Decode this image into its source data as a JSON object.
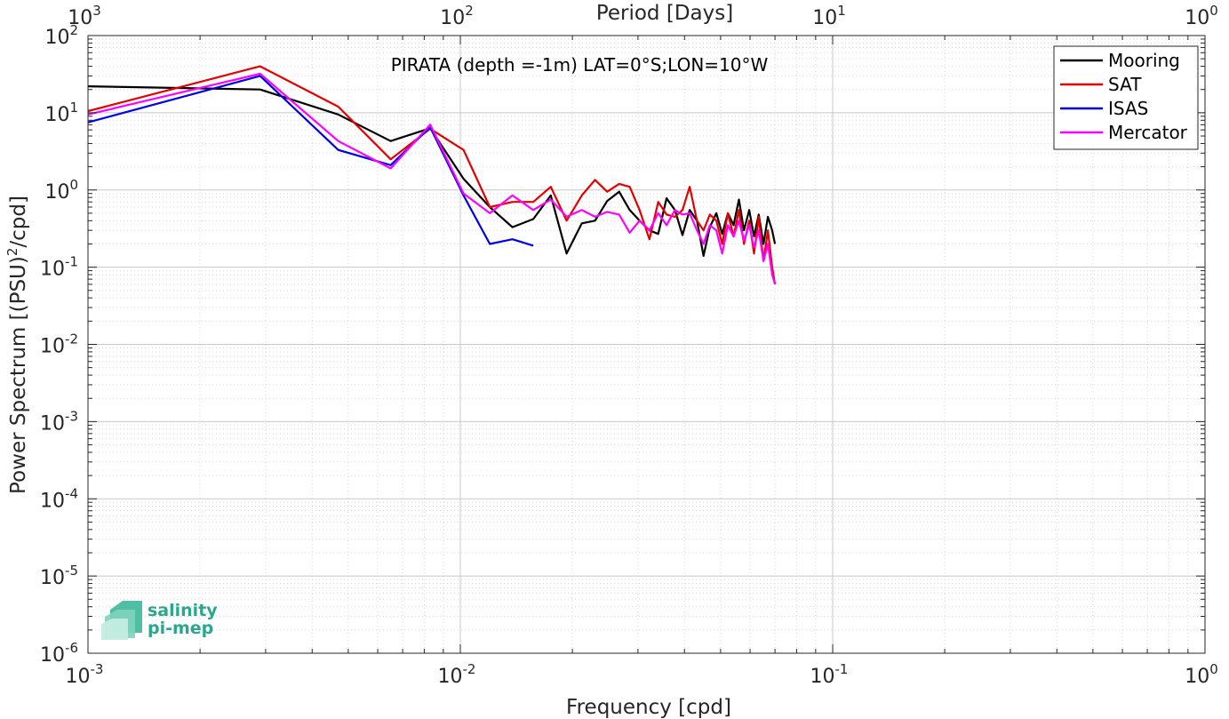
{
  "chart_data": {
    "type": "line",
    "title": "PIRATA (depth =-1m) LAT=0°S;LON=10°W",
    "xlabel": "Frequency [cpd]",
    "ylabel_main": "Power Spectrum [(PSU)",
    "ylabel_sup": "2",
    "ylabel_tail": "/cpd]",
    "top_xlabel": "Period [Days]",
    "xscale": "log",
    "yscale": "log",
    "xlim": [
      0.001,
      1
    ],
    "ylim": [
      1e-06,
      100
    ],
    "grid": true,
    "legend_position": "top-right",
    "x_ticks": [
      {
        "base": "10",
        "exp": "-3"
      },
      {
        "base": "10",
        "exp": "-2"
      },
      {
        "base": "10",
        "exp": "-1"
      },
      {
        "base": "10",
        "exp": "0"
      }
    ],
    "top_ticks": [
      {
        "base": "10",
        "exp": "3"
      },
      {
        "base": "10",
        "exp": "2"
      },
      {
        "base": "10",
        "exp": "1"
      },
      {
        "base": "10",
        "exp": "0"
      }
    ],
    "y_ticks": [
      {
        "base": "10",
        "exp": "2"
      },
      {
        "base": "10",
        "exp": "1"
      },
      {
        "base": "10",
        "exp": "0"
      },
      {
        "base": "10",
        "exp": "-1"
      },
      {
        "base": "10",
        "exp": "-2"
      },
      {
        "base": "10",
        "exp": "-3"
      },
      {
        "base": "10",
        "exp": "-4"
      },
      {
        "base": "10",
        "exp": "-5"
      },
      {
        "base": "10",
        "exp": "-6"
      }
    ],
    "series": [
      {
        "name": "Mooring",
        "color": "#000000",
        "x": [
          0.001,
          0.0029,
          0.0047,
          0.0065,
          0.0083,
          0.0102,
          0.012,
          0.0138,
          0.0157,
          0.0175,
          0.0193,
          0.0212,
          0.023,
          0.0248,
          0.0267,
          0.0285,
          0.0303,
          0.0322,
          0.034,
          0.0358,
          0.0377,
          0.0395,
          0.0413,
          0.0432,
          0.045,
          0.0468,
          0.0487,
          0.0505,
          0.0523,
          0.0542,
          0.056,
          0.0578,
          0.0597,
          0.0615,
          0.0633,
          0.0652,
          0.067,
          0.0688,
          0.07
        ],
        "y": [
          22,
          20,
          9.5,
          4.3,
          6.3,
          1.4,
          0.6,
          0.33,
          0.42,
          0.85,
          0.15,
          0.37,
          0.4,
          0.72,
          0.95,
          0.55,
          0.4,
          0.3,
          0.27,
          0.78,
          0.55,
          0.26,
          0.55,
          0.4,
          0.14,
          0.33,
          0.5,
          0.27,
          0.5,
          0.35,
          0.75,
          0.3,
          0.55,
          0.25,
          0.48,
          0.2,
          0.45,
          0.3,
          0.2
        ]
      },
      {
        "name": "SAT",
        "color": "#e50000",
        "x": [
          0.001,
          0.0029,
          0.0047,
          0.0065,
          0.0083,
          0.0102,
          0.012,
          0.0138,
          0.0157,
          0.0175,
          0.0193,
          0.0212,
          0.023,
          0.0248,
          0.0267,
          0.0285,
          0.0303,
          0.0322,
          0.034,
          0.0358,
          0.0377,
          0.0395,
          0.0413,
          0.0432,
          0.045,
          0.0468,
          0.0487,
          0.0505,
          0.0523,
          0.0542,
          0.056,
          0.0578,
          0.0597,
          0.0615,
          0.0633,
          0.0652,
          0.067,
          0.0688,
          0.07
        ],
        "y": [
          10.5,
          40,
          12,
          2.5,
          6.2,
          3.3,
          0.6,
          0.7,
          0.7,
          1.1,
          0.4,
          0.85,
          1.35,
          0.95,
          1.2,
          1.1,
          0.55,
          0.23,
          0.7,
          0.48,
          0.45,
          0.55,
          1.1,
          0.4,
          0.3,
          0.48,
          0.4,
          0.2,
          0.5,
          0.25,
          0.55,
          0.2,
          0.4,
          0.15,
          0.45,
          0.12,
          0.3,
          0.1,
          0.06
        ]
      },
      {
        "name": "ISAS",
        "color": "#0000e6",
        "x": [
          0.001,
          0.0029,
          0.0047,
          0.0065,
          0.0083,
          0.0102,
          0.012,
          0.0138,
          0.0157
        ],
        "y": [
          7.5,
          30,
          3.3,
          2.1,
          6.5,
          0.85,
          0.2,
          0.23,
          0.19
        ]
      },
      {
        "name": "Mercator",
        "color": "#ff00ff",
        "x": [
          0.001,
          0.0029,
          0.0047,
          0.0065,
          0.0083,
          0.0102,
          0.012,
          0.0138,
          0.0157,
          0.0175,
          0.0193,
          0.0212,
          0.023,
          0.0248,
          0.0267,
          0.0285,
          0.0303,
          0.0322,
          0.034,
          0.0358,
          0.0377,
          0.0395,
          0.0413,
          0.0432,
          0.045,
          0.0468,
          0.0487,
          0.0505,
          0.0523,
          0.0542,
          0.056,
          0.0578,
          0.0597,
          0.0615,
          0.0633,
          0.0652,
          0.067,
          0.0688,
          0.07
        ],
        "y": [
          9.5,
          32,
          4.3,
          1.9,
          7.0,
          0.9,
          0.5,
          0.85,
          0.55,
          0.75,
          0.45,
          0.55,
          0.45,
          0.52,
          0.48,
          0.28,
          0.4,
          0.3,
          0.5,
          0.35,
          0.55,
          0.48,
          0.5,
          0.3,
          0.2,
          0.35,
          0.3,
          0.15,
          0.35,
          0.25,
          0.4,
          0.22,
          0.35,
          0.18,
          0.3,
          0.12,
          0.2,
          0.08,
          0.06
        ]
      }
    ]
  },
  "logo": {
    "line1": "salinity",
    "line2": "pi-mep",
    "color": "#2aa88e"
  }
}
